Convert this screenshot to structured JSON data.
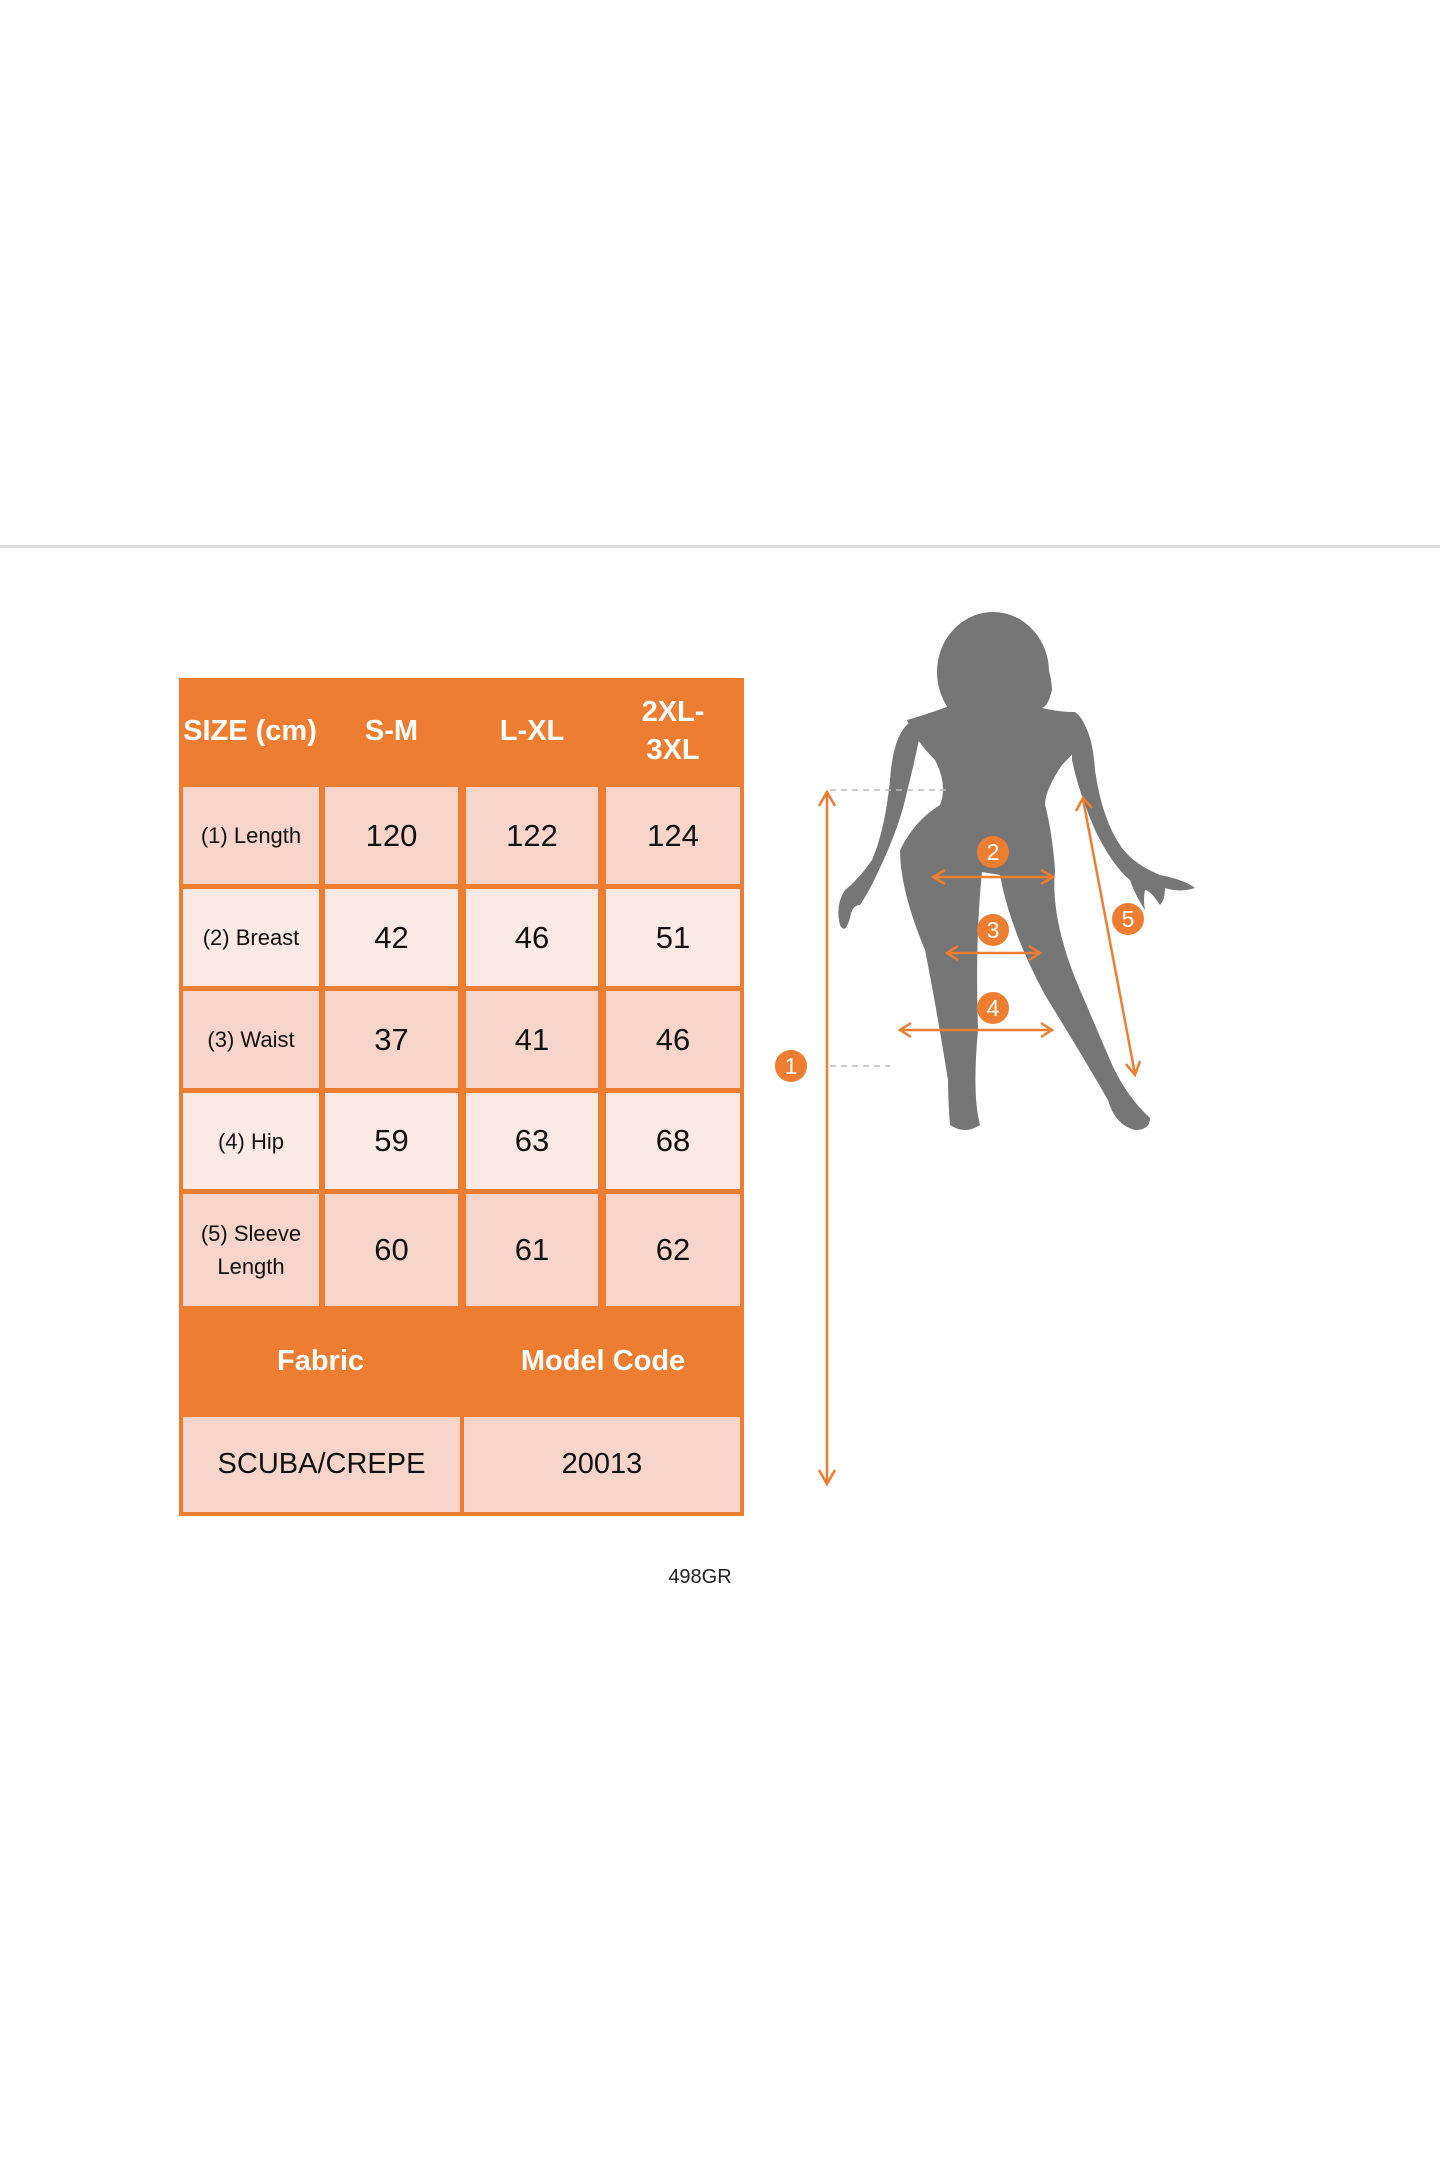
{
  "colors": {
    "accent": "#ed7d31",
    "cell_dark": "#f8d5cb",
    "cell_light": "#fbe9e5",
    "silhouette": "#767676"
  },
  "size_table": {
    "header": [
      "SIZE (cm)",
      "S-M",
      "L-XL",
      "2XL-3XL"
    ],
    "rows": [
      {
        "label": "(1) Length",
        "values": [
          "120",
          "122",
          "124"
        ]
      },
      {
        "label": "(2) Breast",
        "values": [
          "42",
          "46",
          "51"
        ]
      },
      {
        "label": "(3) Waist",
        "values": [
          "37",
          "41",
          "46"
        ]
      },
      {
        "label": "(4) Hip",
        "values": [
          "59",
          "63",
          "68"
        ]
      },
      {
        "label": "(5) Sleeve Length",
        "values": [
          "60",
          "61",
          "62"
        ]
      }
    ],
    "footer_header": [
      "Fabric",
      "Model Code"
    ],
    "footer_values": [
      "SCUBA/CREPE",
      "20013"
    ]
  },
  "figure": {
    "markers": [
      "1",
      "2",
      "3",
      "4",
      "5"
    ]
  },
  "product_code": "498GR"
}
